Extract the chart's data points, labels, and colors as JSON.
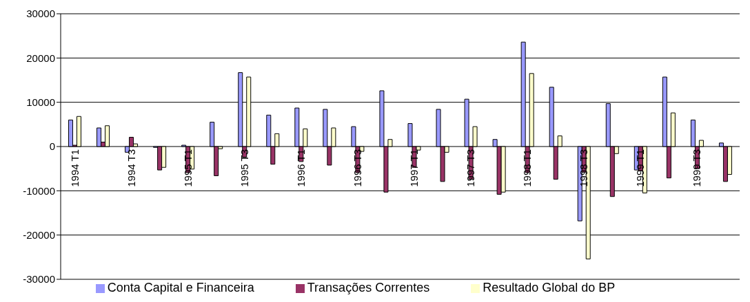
{
  "chart_data": {
    "type": "bar",
    "categories": [
      "1994 T1",
      null,
      "1994 T3",
      null,
      "1995 T1",
      null,
      "1995 T3",
      null,
      "1996 T1",
      null,
      "1996 T3",
      null,
      "1997 T1",
      null,
      "1997 T3",
      null,
      "1998 T1",
      null,
      "1998 T3",
      null,
      "1999 T1",
      null,
      "1999 T3",
      null
    ],
    "series": [
      {
        "name": "Conta Capital e Financeira",
        "color": "#9999ff",
        "values": [
          6000,
          4200,
          -1300,
          -200,
          300,
          5500,
          16700,
          7100,
          8700,
          8400,
          4500,
          12600,
          5200,
          8400,
          10700,
          1600,
          23600,
          13400,
          -16800,
          9700,
          -5300,
          15700,
          6000,
          800
        ]
      },
      {
        "name": "Transações Correntes",
        "color": "#993366",
        "values": [
          300,
          1000,
          2100,
          -5300,
          -5900,
          -6600,
          -2400,
          -4000,
          -3400,
          -4200,
          -5900,
          -10300,
          -4700,
          -7900,
          -7400,
          -10800,
          -5900,
          -7400,
          -5800,
          -11300,
          -5500,
          -7100,
          -5000,
          -7900
        ]
      },
      {
        "name": "Resultado Global do BP",
        "color": "#ffffcc",
        "values": [
          6800,
          4700,
          600,
          -4700,
          -5100,
          -500,
          15700,
          2900,
          4000,
          4200,
          -1100,
          1600,
          -800,
          -1300,
          4500,
          -10300,
          16500,
          2400,
          -25400,
          -1600,
          -10500,
          7600,
          1400,
          -6300
        ]
      }
    ],
    "ylim": [
      -30000,
      30000
    ],
    "yticks": [
      -30000,
      -20000,
      -10000,
      0,
      10000,
      20000,
      30000
    ],
    "grid": "y",
    "legend": "bottom"
  }
}
